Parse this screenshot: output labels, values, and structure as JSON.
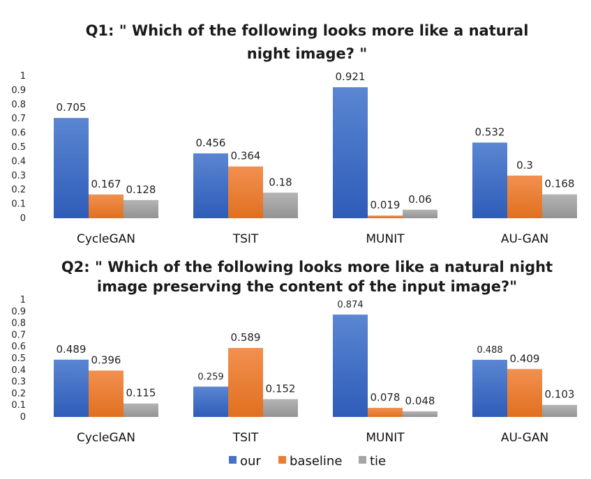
{
  "colors": {
    "our": "#4472C4",
    "baseline": "#ED7D31",
    "tie": "#A5A5A5"
  },
  "legend": [
    {
      "label": "our",
      "color": "#4472C4"
    },
    {
      "label": "baseline",
      "color": "#ED7D31"
    },
    {
      "label": "tie",
      "color": "#A5A5A5"
    }
  ],
  "chart_data": [
    {
      "type": "bar",
      "title": "Q1: \" Which of the following looks more like a natural night image? \"",
      "title_lines": [
        "Q1: \" Which of the following looks more like a natural",
        "night image? \""
      ],
      "categories": [
        "CycleGAN",
        "TSIT",
        "MUNIT",
        "AU-GAN"
      ],
      "ylim": [
        0,
        1
      ],
      "yticks": [
        "0",
        "0.1",
        "0.2",
        "0.3",
        "0.4",
        "0.5",
        "0.6",
        "0.7",
        "0.8",
        "0.9",
        "1"
      ],
      "grid": false,
      "legend_position": "bottom",
      "series": [
        {
          "name": "our",
          "values": [
            0.705,
            0.456,
            0.921,
            0.532
          ],
          "labels": [
            "0.705",
            "0.456",
            "0.921",
            "0.532"
          ]
        },
        {
          "name": "baseline",
          "values": [
            0.167,
            0.364,
            0.019,
            0.3
          ],
          "labels": [
            "0.167",
            "0.364",
            "0.019",
            "0.3"
          ]
        },
        {
          "name": "tie",
          "values": [
            0.128,
            0.18,
            0.06,
            0.168
          ],
          "labels": [
            "0.128",
            "0.18",
            "0.06",
            "0.168"
          ]
        }
      ]
    },
    {
      "type": "bar",
      "title": "Q2: \" Which of the following looks more like a natural night image preserving the content of the input image?\"",
      "title_lines": [
        "Q2: \" Which of the following looks more like a natural night",
        "image preserving the content of the input image?\""
      ],
      "categories": [
        "CycleGAN",
        "TSIT",
        "MUNIT",
        "AU-GAN"
      ],
      "ylim": [
        0,
        1
      ],
      "yticks": [
        "0",
        "0.1",
        "0.2",
        "0.3",
        "0.4",
        "0.5",
        "0.6",
        "0.7",
        "0.8",
        "0.9",
        "1"
      ],
      "grid": false,
      "legend_position": "bottom",
      "series": [
        {
          "name": "our",
          "values": [
            0.489,
            0.259,
            0.874,
            0.488
          ],
          "labels": [
            "0.489",
            "0.259",
            "0.874",
            "0.488"
          ]
        },
        {
          "name": "baseline",
          "values": [
            0.396,
            0.589,
            0.078,
            0.409
          ],
          "labels": [
            "0.396",
            "0.589",
            "0.078",
            "0.409"
          ]
        },
        {
          "name": "tie",
          "values": [
            0.115,
            0.152,
            0.048,
            0.103
          ],
          "labels": [
            "0.115",
            "0.152",
            "0.048",
            "0.103"
          ]
        }
      ]
    }
  ]
}
